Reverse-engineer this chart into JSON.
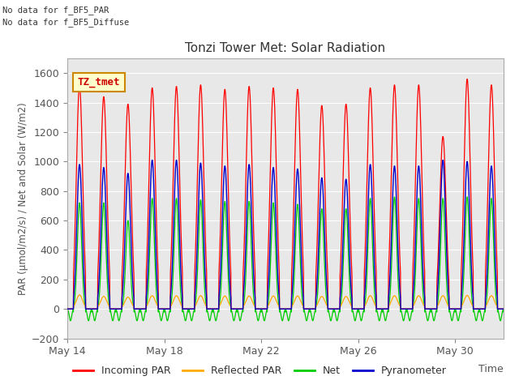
{
  "title": "Tonzi Tower Met: Solar Radiation",
  "ylabel": "PAR (μmol/m2/s) / Net and Solar (W/m2)",
  "xlabel": "Time",
  "ylim": [
    -200,
    1700
  ],
  "yticks": [
    -200,
    0,
    200,
    400,
    600,
    800,
    1000,
    1200,
    1400,
    1600
  ],
  "annotation_lines": [
    "No data for f_BF5_PAR",
    "No data for f_BF5_Diffuse"
  ],
  "legend_label_box": "TZ_tmet",
  "legend_box_facecolor": "#ffffcc",
  "legend_box_edgecolor": "#cc8800",
  "colors": {
    "incoming_par": "#ff0000",
    "reflected_par": "#ffaa00",
    "net": "#00cc00",
    "pyranometer": "#0000cc"
  },
  "legend_labels": [
    "Incoming PAR",
    "Reflected PAR",
    "Net",
    "Pyranometer"
  ],
  "x_tick_labels": [
    "May 14",
    "May 18",
    "May 22",
    "May 26",
    "May 30"
  ],
  "x_tick_positions": [
    0,
    4,
    8,
    12,
    16
  ],
  "num_days": 18,
  "fig_facecolor": "#ffffff",
  "plot_facecolor": "#e8e8e8"
}
